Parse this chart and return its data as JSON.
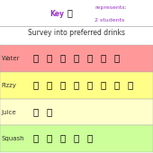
{
  "title": "Survey into preferred drinks",
  "key_text1": "Key",
  "key_text2": "represents:",
  "key_text3": "2 students",
  "categories": [
    "Water",
    "Fizzy",
    "Juice",
    "Squash"
  ],
  "bottles": [
    7,
    8,
    2,
    5
  ],
  "row_colors": [
    "#FF9999",
    "#FFFF88",
    "#FFFFCC",
    "#CCFF99"
  ],
  "text_color_key": "#9933CC",
  "text_color_title": "#333333",
  "text_color_row": "#333333",
  "bottle_color": "#2D6B2D",
  "bg_color": "#FFFFFF"
}
